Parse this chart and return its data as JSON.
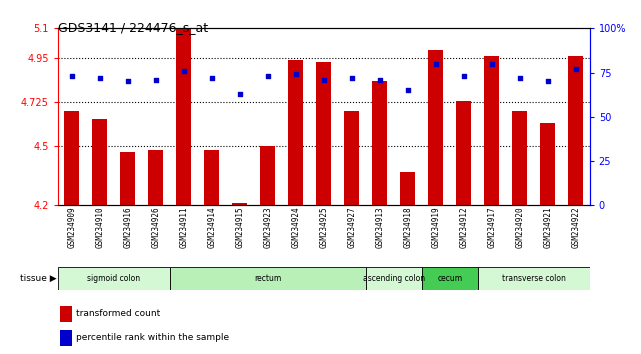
{
  "title": "GDS3141 / 224476_s_at",
  "samples": [
    "GSM234909",
    "GSM234910",
    "GSM234916",
    "GSM234926",
    "GSM234911",
    "GSM234914",
    "GSM234915",
    "GSM234923",
    "GSM234924",
    "GSM234925",
    "GSM234927",
    "GSM234913",
    "GSM234918",
    "GSM234919",
    "GSM234912",
    "GSM234917",
    "GSM234920",
    "GSM234921",
    "GSM234922"
  ],
  "bar_values": [
    4.68,
    4.64,
    4.47,
    4.48,
    5.1,
    4.48,
    4.21,
    4.5,
    4.94,
    4.93,
    4.68,
    4.83,
    4.37,
    4.99,
    4.73,
    4.96,
    4.68,
    4.62,
    4.96
  ],
  "dot_values": [
    73,
    72,
    70,
    71,
    76,
    72,
    63,
    73,
    74,
    71,
    72,
    71,
    65,
    80,
    73,
    80,
    72,
    70,
    77
  ],
  "tissues": [
    {
      "label": "sigmoid colon",
      "start": 0,
      "end": 4,
      "color": "#d4f7d4"
    },
    {
      "label": "rectum",
      "start": 4,
      "end": 11,
      "color": "#b8f0b8"
    },
    {
      "label": "ascending colon",
      "start": 11,
      "end": 13,
      "color": "#d4f7d4"
    },
    {
      "label": "cecum",
      "start": 13,
      "end": 15,
      "color": "#44cc55"
    },
    {
      "label": "transverse colon",
      "start": 15,
      "end": 19,
      "color": "#d4f7d4"
    }
  ],
  "ylim_left": [
    4.2,
    5.1
  ],
  "ylim_right": [
    0,
    100
  ],
  "yticks_left": [
    4.2,
    4.5,
    4.725,
    4.95,
    5.1
  ],
  "ytick_labels_left": [
    "4.2",
    "4.5",
    "4.725",
    "4.95",
    "5.1"
  ],
  "yticks_right": [
    0,
    25,
    50,
    75,
    100
  ],
  "ytick_labels_right": [
    "0",
    "25",
    "50",
    "75",
    "100%"
  ],
  "bar_color": "#cc0000",
  "dot_color": "#0000cc",
  "bar_bottom": 4.2
}
